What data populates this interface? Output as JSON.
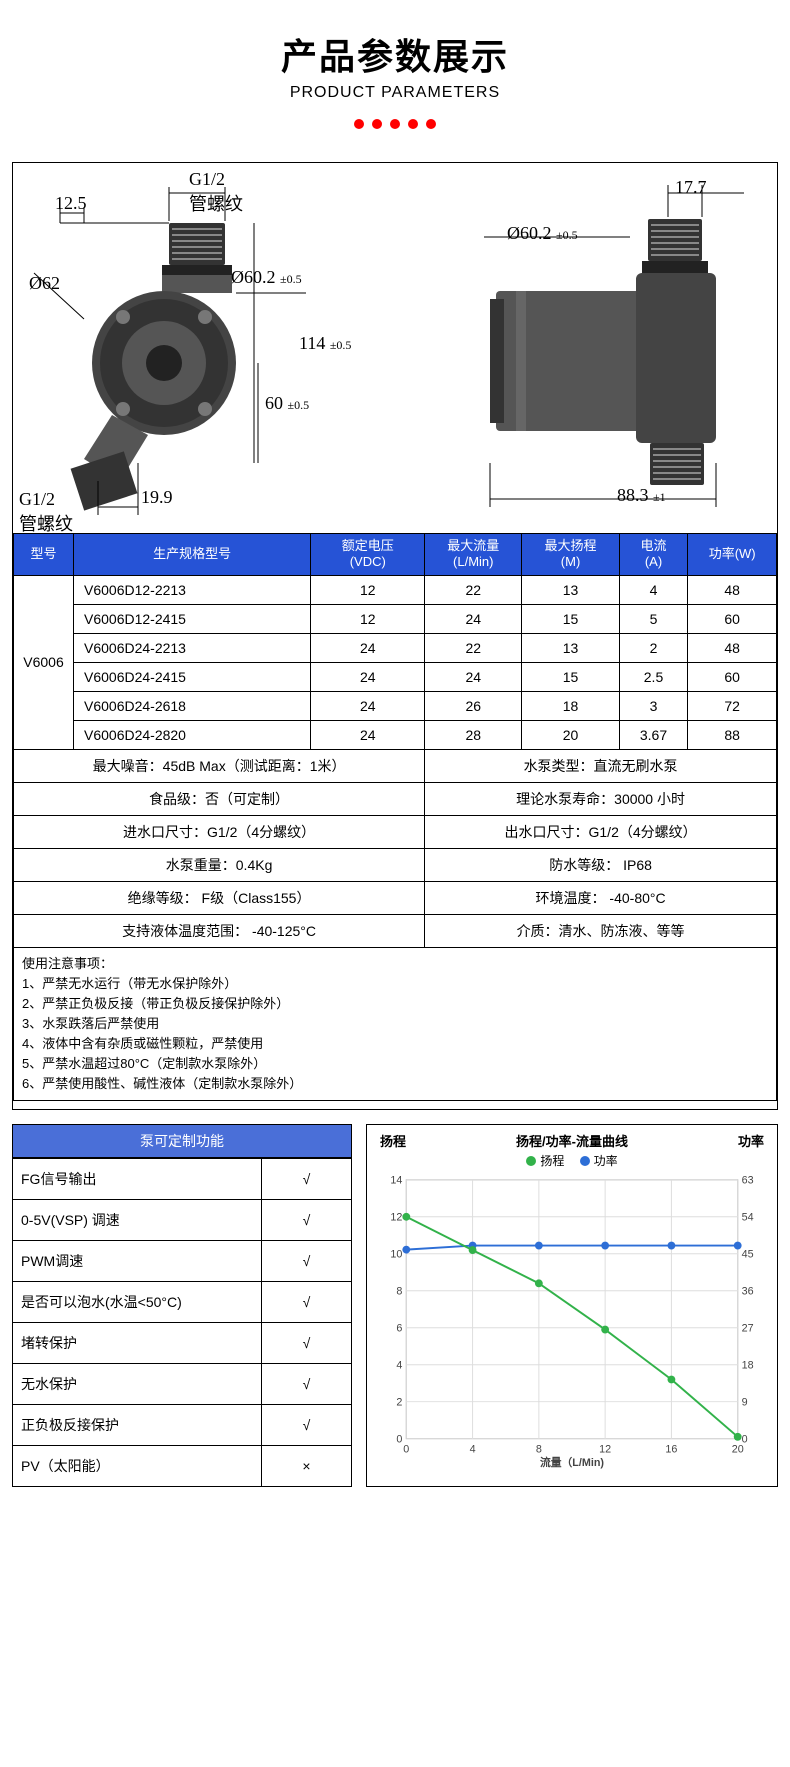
{
  "header": {
    "title": "产品参数展示",
    "subtitle": "PRODUCT PARAMETERS"
  },
  "drawing": {
    "left": {
      "g12_top": "G1/2\n管螺纹",
      "d12_5": "12.5",
      "d62": "Ø62",
      "d60_2": "Ø60.2",
      "d60_2_tol": "±0.5",
      "d114": "114",
      "d114_tol": "±0.5",
      "d60": "60",
      "d60_tol": "±0.5",
      "d19_9": "19.9",
      "g12_bot": "G1/2\n管螺纹"
    },
    "right": {
      "d17_7": "17.7",
      "d60_2": "Ø60.2",
      "d60_2_tol": "±0.5",
      "d88_3": "88.3",
      "d88_3_tol": "±1"
    }
  },
  "spec_table": {
    "columns": [
      "型号",
      "生产规格型号",
      "额定电压\n(VDC)",
      "最大流量\n(L/Min)",
      "最大扬程\n(M)",
      "电流\n(A)",
      "功率(W)"
    ],
    "model": "V6006",
    "rows": [
      {
        "sku": "V6006D12-2213",
        "v": "12",
        "flow": "22",
        "head": "13",
        "amp": "4",
        "pw": "48"
      },
      {
        "sku": "V6006D12-2415",
        "v": "12",
        "flow": "24",
        "head": "15",
        "amp": "5",
        "pw": "60"
      },
      {
        "sku": "V6006D24-2213",
        "v": "24",
        "flow": "22",
        "head": "13",
        "amp": "2",
        "pw": "48"
      },
      {
        "sku": "V6006D24-2415",
        "v": "24",
        "flow": "24",
        "head": "15",
        "amp": "2.5",
        "pw": "60"
      },
      {
        "sku": "V6006D24-2618",
        "v": "24",
        "flow": "26",
        "head": "18",
        "amp": "3",
        "pw": "72"
      },
      {
        "sku": "V6006D24-2820",
        "v": "24",
        "flow": "28",
        "head": "20",
        "amp": "3.67",
        "pw": "88"
      }
    ]
  },
  "info_rows": [
    [
      "最大噪音：45dB Max（测试距离：1米）",
      "水泵类型：直流无刷水泵"
    ],
    [
      "食品级：否（可定制）",
      "理论水泵寿命：30000 小时"
    ],
    [
      "进水口尺寸：G1/2（4分螺纹）",
      "出水口尺寸：G1/2（4分螺纹）"
    ],
    [
      "水泵重量：0.4Kg",
      "防水等级： IP68"
    ],
    [
      "绝缘等级： F级（Class155）",
      "环境温度： -40-80°C"
    ],
    [
      "支持液体温度范围： -40-125°C",
      "介质：清水、防冻液、等等"
    ]
  ],
  "notes": {
    "title": "使用注意事项：",
    "items": [
      "1、严禁无水运行（带无水保护除外）",
      "2、严禁正负极反接（带正负极反接保护除外）",
      "3、水泵跌落后严禁使用",
      "4、液体中含有杂质或磁性颗粒，严禁使用",
      "5、严禁水温超过80°C（定制款水泵除外）",
      "6、严禁使用酸性、碱性液体（定制款水泵除外）"
    ]
  },
  "features": {
    "title": "泵可定制功能",
    "rows": [
      {
        "label": "FG信号输出",
        "val": "√"
      },
      {
        "label": "0-5V(VSP) 调速",
        "val": "√"
      },
      {
        "label": "PWM调速",
        "val": "√"
      },
      {
        "label": "是否可以泡水(水温<50°C)",
        "val": "√"
      },
      {
        "label": "堵转保护",
        "val": "√"
      },
      {
        "label": "无水保护",
        "val": "√"
      },
      {
        "label": "正负极反接保护",
        "val": "√"
      },
      {
        "label": "PV（太阳能）",
        "val": "×"
      }
    ]
  },
  "chart": {
    "title": "扬程/功率-流量曲线",
    "left_axis_label": "扬程",
    "right_axis_label": "功率",
    "x_axis_label": "流量（L/Min)",
    "legend": {
      "head": "扬程",
      "power": "功率"
    },
    "colors": {
      "head": "#32b24a",
      "power": "#2d6ed6",
      "grid": "#dddddd",
      "axis_text": "#555555",
      "border": "#999999"
    },
    "x_ticks": [
      0,
      4,
      8,
      12,
      16,
      20
    ],
    "y_left_ticks": [
      0,
      2,
      4,
      6,
      8,
      10,
      12,
      14
    ],
    "y_right_ticks": [
      0,
      9,
      18,
      27,
      36,
      45,
      54,
      63
    ],
    "head_series": [
      [
        0,
        12
      ],
      [
        4,
        10.2
      ],
      [
        8,
        8.4
      ],
      [
        12,
        5.9
      ],
      [
        16,
        3.2
      ],
      [
        20,
        0.1
      ]
    ],
    "power_series": [
      [
        0,
        46
      ],
      [
        4,
        47
      ],
      [
        8,
        47
      ],
      [
        12,
        47
      ],
      [
        16,
        47
      ],
      [
        20,
        47
      ]
    ]
  }
}
